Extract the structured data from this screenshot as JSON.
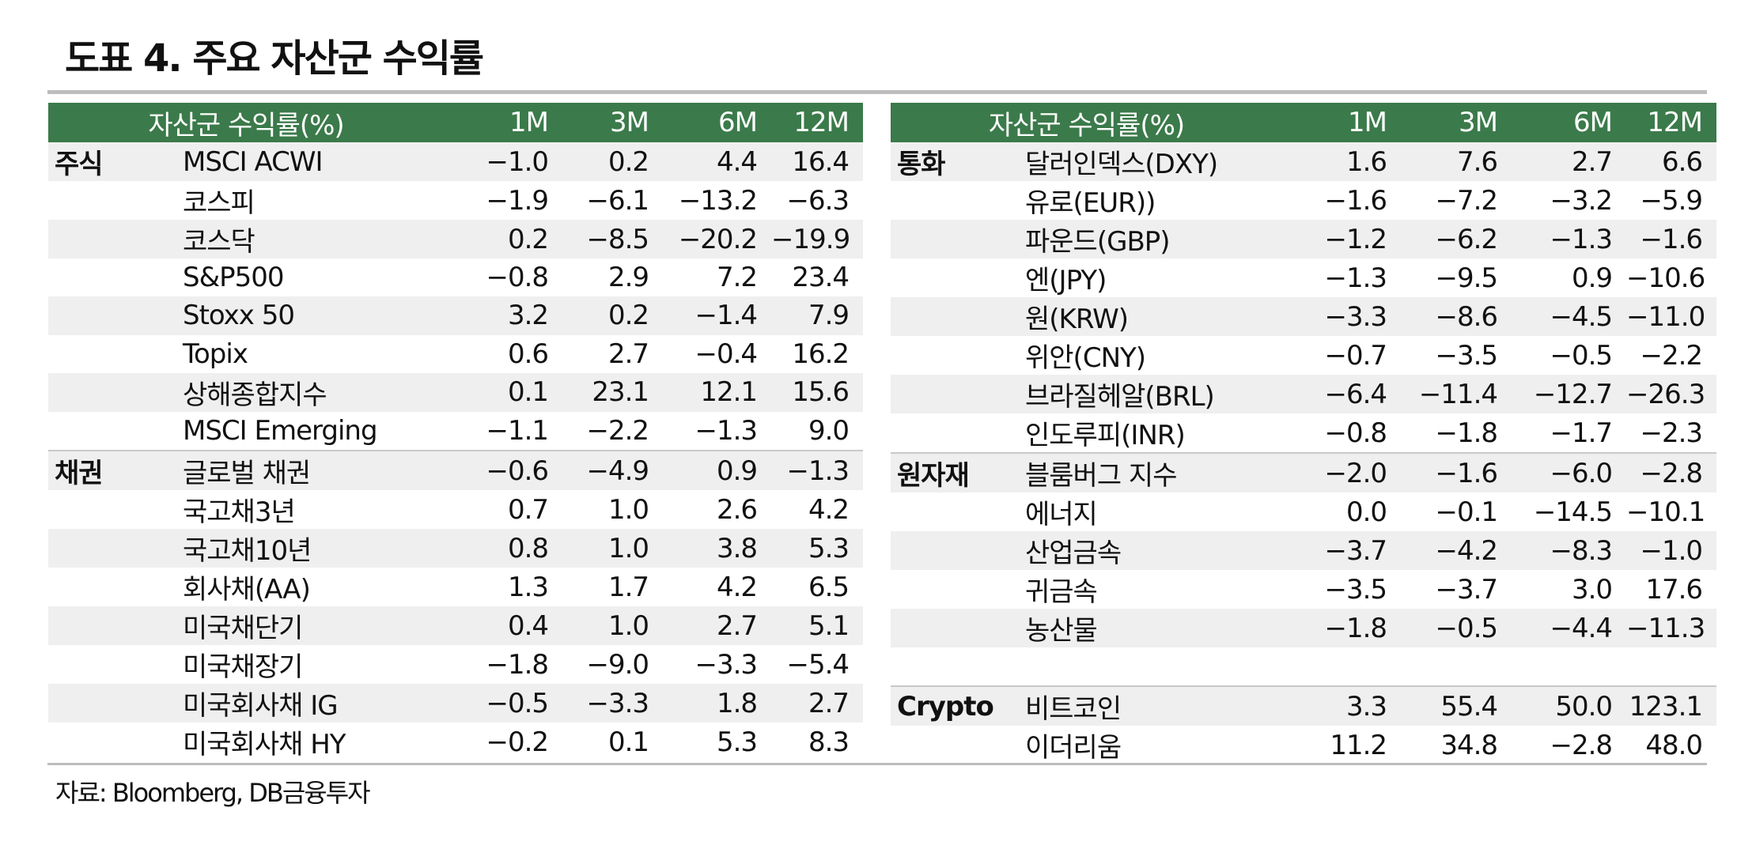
{
  "title": "도표 4. 주요 자산군 수익률",
  "source": "자료: Bloomberg, DB금융투자",
  "tables": {
    "left": {
      "header": {
        "title": "자산군 수익률(%)",
        "cols": [
          "1M",
          "3M",
          "6M",
          "12M"
        ]
      },
      "rows": [
        {
          "group": "주식",
          "name": "MSCI ACWI",
          "values": [
            "−1.0",
            "0.2",
            "4.4",
            "16.4"
          ]
        },
        {
          "group": "",
          "name": "코스피",
          "values": [
            "−1.9",
            "−6.1",
            "−13.2",
            "−6.3"
          ]
        },
        {
          "group": "",
          "name": "코스닥",
          "values": [
            "0.2",
            "−8.5",
            "−20.2",
            "−19.9"
          ]
        },
        {
          "group": "",
          "name": "S&P500",
          "values": [
            "−0.8",
            "2.9",
            "7.2",
            "23.4"
          ]
        },
        {
          "group": "",
          "name": "Stoxx 50",
          "values": [
            "3.2",
            "0.2",
            "−1.4",
            "7.9"
          ]
        },
        {
          "group": "",
          "name": "Topix",
          "values": [
            "0.6",
            "2.7",
            "−0.4",
            "16.2"
          ]
        },
        {
          "group": "",
          "name": "상해종합지수",
          "values": [
            "0.1",
            "23.1",
            "12.1",
            "15.6"
          ]
        },
        {
          "group": "",
          "name": "MSCI Emerging",
          "values": [
            "−1.1",
            "−2.2",
            "−1.3",
            "9.0"
          ]
        },
        {
          "group": "채권",
          "name": "글로벌 채권",
          "values": [
            "−0.6",
            "−4.9",
            "0.9",
            "−1.3"
          ]
        },
        {
          "group": "",
          "name": "국고채3년",
          "values": [
            "0.7",
            "1.0",
            "2.6",
            "4.2"
          ]
        },
        {
          "group": "",
          "name": "국고채10년",
          "values": [
            "0.8",
            "1.0",
            "3.8",
            "5.3"
          ]
        },
        {
          "group": "",
          "name": "회사채(AA)",
          "values": [
            "1.3",
            "1.7",
            "4.2",
            "6.5"
          ]
        },
        {
          "group": "",
          "name": "미국채단기",
          "values": [
            "0.4",
            "1.0",
            "2.7",
            "5.1"
          ]
        },
        {
          "group": "",
          "name": "미국채장기",
          "values": [
            "−1.8",
            "−9.0",
            "−3.3",
            "−5.4"
          ]
        },
        {
          "group": "",
          "name": "미국회사채 IG",
          "values": [
            "−0.5",
            "−3.3",
            "1.8",
            "2.7"
          ]
        },
        {
          "group": "",
          "name": "미국회사채 HY",
          "values": [
            "−0.2",
            "0.1",
            "5.3",
            "8.3"
          ]
        }
      ]
    },
    "right": {
      "header": {
        "title": "자산군 수익률(%)",
        "cols": [
          "1M",
          "3M",
          "6M",
          "12M"
        ]
      },
      "rows": [
        {
          "group": "통화",
          "name": "달러인덱스(DXY)",
          "values": [
            "1.6",
            "7.6",
            "2.7",
            "6.6"
          ]
        },
        {
          "group": "",
          "name": "유로(EUR))",
          "values": [
            "−1.6",
            "−7.2",
            "−3.2",
            "−5.9"
          ]
        },
        {
          "group": "",
          "name": "파운드(GBP)",
          "values": [
            "−1.2",
            "−6.2",
            "−1.3",
            "−1.6"
          ]
        },
        {
          "group": "",
          "name": "엔(JPY)",
          "values": [
            "−1.3",
            "−9.5",
            "0.9",
            "−10.6"
          ]
        },
        {
          "group": "",
          "name": "원(KRW)",
          "values": [
            "−3.3",
            "−8.6",
            "−4.5",
            "−11.0"
          ]
        },
        {
          "group": "",
          "name": "위안(CNY)",
          "values": [
            "−0.7",
            "−3.5",
            "−0.5",
            "−2.2"
          ]
        },
        {
          "group": "",
          "name": "브라질헤알(BRL)",
          "values": [
            "−6.4",
            "−11.4",
            "−12.7",
            "−26.3"
          ]
        },
        {
          "group": "",
          "name": "인도루피(INR)",
          "values": [
            "−0.8",
            "−1.8",
            "−1.7",
            "−2.3"
          ]
        },
        {
          "group": "원자재",
          "name": "블룸버그 지수",
          "values": [
            "−2.0",
            "−1.6",
            "−6.0",
            "−2.8"
          ]
        },
        {
          "group": "",
          "name": "에너지",
          "values": [
            "0.0",
            "−0.1",
            "−14.5",
            "−10.1"
          ]
        },
        {
          "group": "",
          "name": "산업금속",
          "values": [
            "−3.7",
            "−4.2",
            "−8.3",
            "−1.0"
          ]
        },
        {
          "group": "",
          "name": "귀금속",
          "values": [
            "−3.5",
            "−3.7",
            "3.0",
            "17.6"
          ]
        },
        {
          "group": "",
          "name": "농산물",
          "values": [
            "−1.8",
            "−0.5",
            "−4.4",
            "−11.3"
          ]
        },
        {
          "group": "",
          "name": "",
          "values": [
            "",
            "",
            "",
            ""
          ]
        },
        {
          "group": "Crypto",
          "name": "비트코인",
          "values": [
            "3.3",
            "55.4",
            "50.0",
            "123.1"
          ]
        },
        {
          "group": "",
          "name": "이더리움",
          "values": [
            "11.2",
            "34.8",
            "−2.8",
            "48.0"
          ]
        }
      ]
    }
  },
  "colors": {
    "header_bg": "#3b7a4a",
    "header_text": "#ffffff",
    "stripe_bg": "#efefef",
    "rule": "#bdbdbd"
  }
}
